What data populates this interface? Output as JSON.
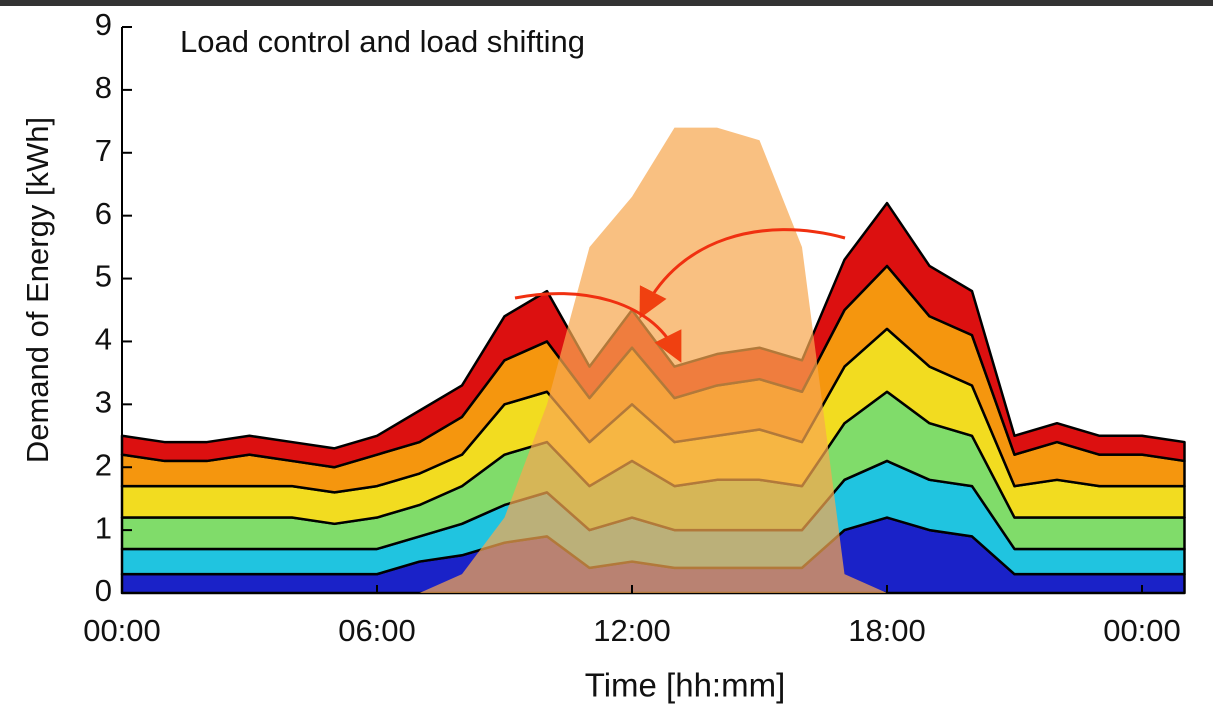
{
  "chart_data": {
    "type": "stacked_area",
    "title": "Load control and load shifting",
    "x_label": "Time [hh:mm]",
    "y_label": "Demand of Energy [kWh]",
    "x": [
      0,
      1,
      2,
      3,
      4,
      5,
      6,
      7,
      8,
      9,
      10,
      11,
      12,
      13,
      14,
      15,
      16,
      17,
      18,
      19,
      20,
      21,
      22,
      23,
      24,
      25
    ],
    "xlim": [
      0,
      25.7
    ],
    "xticks": [
      {
        "value": 0,
        "label": "00:00"
      },
      {
        "value": 6,
        "label": "06:00"
      },
      {
        "value": 12,
        "label": "12:00"
      },
      {
        "value": 18,
        "label": "18:00"
      },
      {
        "value": 24,
        "label": "00:00"
      }
    ],
    "ylim": [
      0,
      9
    ],
    "yticks": [
      0,
      1,
      2,
      3,
      4,
      5,
      6,
      7,
      8,
      9
    ],
    "series": [
      {
        "color": "#1a22c8",
        "values": [
          0.3,
          0.3,
          0.3,
          0.3,
          0.3,
          0.3,
          0.3,
          0.5,
          0.6,
          0.8,
          0.9,
          0.4,
          0.5,
          0.4,
          0.4,
          0.4,
          0.4,
          1.0,
          1.2,
          1.0,
          0.9,
          0.3,
          0.3,
          0.3,
          0.3,
          0.3
        ]
      },
      {
        "color": "#20c4e0",
        "values": [
          0.4,
          0.4,
          0.4,
          0.4,
          0.4,
          0.4,
          0.4,
          0.4,
          0.5,
          0.6,
          0.7,
          0.6,
          0.7,
          0.6,
          0.6,
          0.6,
          0.6,
          0.8,
          0.9,
          0.8,
          0.8,
          0.4,
          0.4,
          0.4,
          0.4,
          0.4
        ]
      },
      {
        "color": "#80dc6a",
        "values": [
          0.5,
          0.5,
          0.5,
          0.5,
          0.5,
          0.4,
          0.5,
          0.5,
          0.6,
          0.8,
          0.8,
          0.7,
          0.9,
          0.7,
          0.8,
          0.8,
          0.7,
          0.9,
          1.1,
          0.9,
          0.8,
          0.5,
          0.5,
          0.5,
          0.5,
          0.5
        ]
      },
      {
        "color": "#f2dc20",
        "values": [
          0.5,
          0.5,
          0.5,
          0.5,
          0.5,
          0.5,
          0.5,
          0.5,
          0.5,
          0.8,
          0.8,
          0.7,
          0.9,
          0.7,
          0.7,
          0.8,
          0.7,
          0.9,
          1.0,
          0.9,
          0.8,
          0.5,
          0.6,
          0.5,
          0.5,
          0.5
        ]
      },
      {
        "color": "#f5960e",
        "values": [
          0.5,
          0.4,
          0.4,
          0.5,
          0.4,
          0.4,
          0.5,
          0.5,
          0.6,
          0.7,
          0.8,
          0.7,
          0.9,
          0.7,
          0.8,
          0.8,
          0.8,
          0.9,
          1.0,
          0.8,
          0.8,
          0.5,
          0.6,
          0.5,
          0.5,
          0.4
        ]
      },
      {
        "color": "#dc1010",
        "values": [
          0.3,
          0.3,
          0.3,
          0.3,
          0.3,
          0.3,
          0.3,
          0.5,
          0.5,
          0.7,
          0.8,
          0.5,
          0.6,
          0.5,
          0.5,
          0.5,
          0.5,
          0.8,
          1.0,
          0.8,
          0.7,
          0.3,
          0.3,
          0.3,
          0.3,
          0.3
        ]
      }
    ],
    "overlay": {
      "color": "#f7a850",
      "values": [
        0,
        0,
        0,
        0,
        0,
        0,
        0,
        0,
        0.3,
        1.2,
        3,
        5.5,
        6.3,
        7.4,
        7.4,
        7.2,
        5.5,
        0.3,
        0,
        0,
        0,
        0,
        0,
        0,
        0,
        0
      ]
    }
  }
}
